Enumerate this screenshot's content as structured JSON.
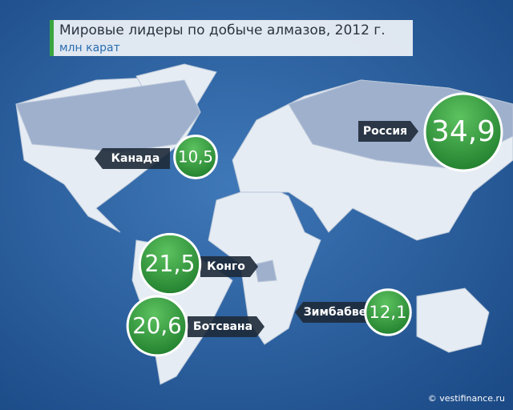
{
  "chart_data": {
    "type": "bubble-map",
    "title": "Мировые лидеры по добыче алмазов, 2012 г.",
    "subtitle": "млн карат",
    "categories": [
      "Россия",
      "Канада",
      "Конго",
      "Ботсвана",
      "Зимбабве"
    ],
    "values": [
      34.9,
      10.5,
      21.5,
      20.6,
      12.1
    ],
    "value_labels": [
      "34,9",
      "10,5",
      "21,5",
      "20,6",
      "12,1"
    ],
    "color": "#2f9a3c",
    "source": "© vestifinance.ru"
  }
}
